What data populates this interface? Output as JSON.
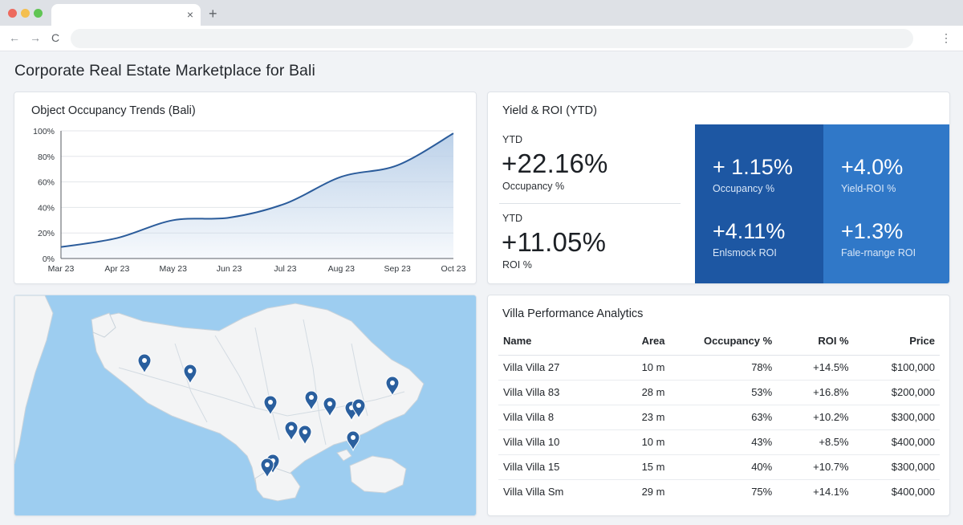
{
  "browser": {
    "tab_close": "×",
    "new_tab": "+",
    "back": "←",
    "forward": "→",
    "reload": "C",
    "menu": "⋮"
  },
  "page": {
    "title": "Corporate Real Estate Marketplace for Bali"
  },
  "occupancy_chart": {
    "title": "Object Occupancy Trends (Bali)",
    "line_color": "#2b5c9b",
    "fill_color": "#b9cfe8",
    "chart_data": {
      "type": "area",
      "title": "Object Occupancy Trends (Bali)",
      "xlabel": "",
      "ylabel": "",
      "categories": [
        "Mar 23",
        "Apr 23",
        "May 23",
        "Jun 23",
        "Jul 23",
        "Aug 23",
        "Sep 23",
        "Oct 23"
      ],
      "values": [
        9,
        16,
        30,
        32,
        43,
        64,
        73,
        98
      ],
      "y_ticks": [
        "0%",
        "20%",
        "40%",
        "60%",
        "80%",
        "100%"
      ],
      "ylim": [
        0,
        100
      ],
      "grid": true,
      "legend": "none"
    }
  },
  "yield": {
    "title": "Yield & ROI (YTD)",
    "kpis": [
      {
        "label": "YTD",
        "value": "+22.16%",
        "caption": "Occupancy %"
      },
      {
        "label": "YTD",
        "value": "+11.05%",
        "caption": "ROI %"
      }
    ],
    "tiles": [
      {
        "value": "+ 1.15%",
        "label": "Occupancy %",
        "color": "#1d57a3"
      },
      {
        "value": "+4.0%",
        "label": "Yield-ROI %",
        "color": "#3078c8"
      },
      {
        "value": "+4.11%",
        "label": "Enlsmock ROI",
        "color": "#1d57a3"
      },
      {
        "value": "+1.3%",
        "label": "Fale-rnange ROI",
        "color": "#3078c8"
      }
    ]
  },
  "map": {
    "sea_color": "#9dcdf0",
    "land_color": "#f3f4f5",
    "pin_color": "#2a5f9e",
    "pin_icon": "map-pin-icon"
  },
  "villas": {
    "title": "Villa Performance Analytics",
    "columns": [
      "Name",
      "Area",
      "Occupancy %",
      "ROI %",
      "Price"
    ],
    "rows": [
      [
        "Villa Villa 27",
        "10 m",
        "78%",
        "+14.5%",
        "$100,000"
      ],
      [
        "Villa Villa 83",
        "28 m",
        "53%",
        "+16.8%",
        "$200,000"
      ],
      [
        "Villa Villa 8",
        "23 m",
        "63%",
        "+10.2%",
        "$300,000"
      ],
      [
        "Villa Villa 10",
        "10 m",
        "43%",
        "+8.5%",
        "$400,000"
      ],
      [
        "Villa Villa 15",
        "15 m",
        "40%",
        "+10.7%",
        "$300,000"
      ],
      [
        "Villa Villa Sm",
        "29 m",
        "75%",
        "+14.1%",
        "$400,000"
      ]
    ]
  }
}
